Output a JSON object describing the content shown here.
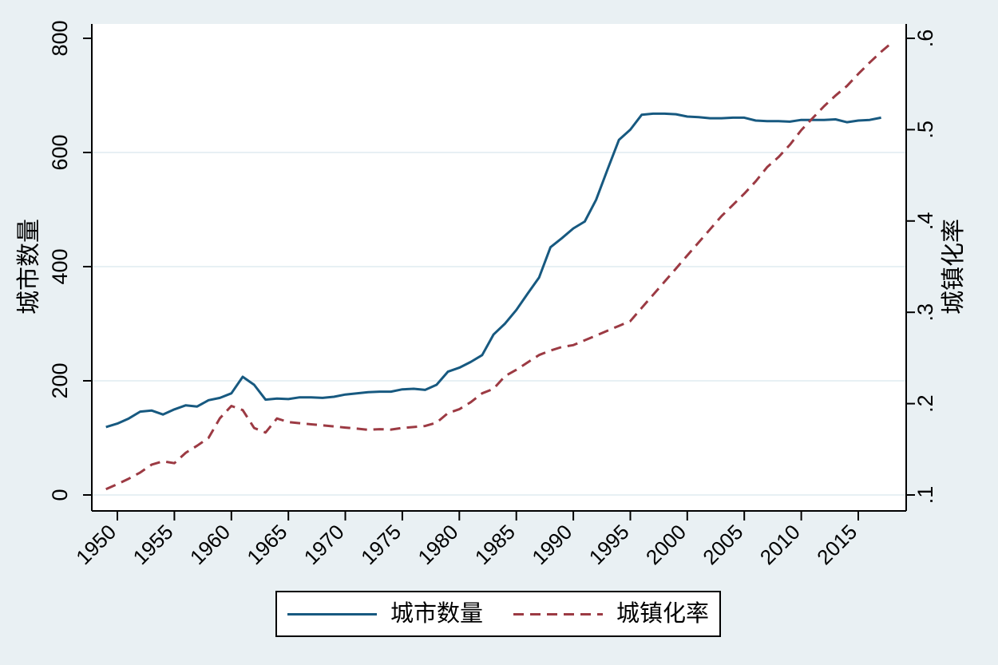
{
  "chart_data": {
    "type": "line",
    "title": "",
    "x_start_year": 1949,
    "x_ticks": [
      1950,
      1955,
      1960,
      1965,
      1970,
      1975,
      1980,
      1985,
      1990,
      1995,
      2000,
      2005,
      2010,
      2015
    ],
    "left_axis": {
      "title": "城市数量",
      "min": 0,
      "max": 800,
      "ticks": [
        0,
        200,
        400,
        600,
        800
      ],
      "tick_labels": [
        "0",
        "200",
        "400",
        "600",
        "800"
      ],
      "grid_ticks": [
        0,
        200,
        400,
        600
      ]
    },
    "right_axis": {
      "title": "城镇化率",
      "min": 0.1,
      "max": 0.6,
      "tick_values": [
        0.1,
        0.2,
        0.3,
        0.4,
        0.5,
        0.6
      ],
      "tick_labels": [
        ".1",
        ".2",
        ".3",
        ".4",
        ".5",
        ".6"
      ]
    },
    "series": [
      {
        "name": "城市数量",
        "axis": "left",
        "line": "solid",
        "color": "#175980",
        "start_year": 1949,
        "values": [
          119,
          125,
          134,
          146,
          148,
          141,
          150,
          157,
          155,
          166,
          170,
          178,
          207,
          193,
          167,
          169,
          168,
          171,
          171,
          170,
          172,
          176,
          178,
          180,
          181,
          181,
          185,
          186,
          184,
          193,
          216,
          223,
          233,
          245,
          281,
          300,
          324,
          353,
          381,
          434,
          450,
          467,
          479,
          517,
          570,
          622,
          640,
          666,
          668,
          668,
          667,
          663,
          662,
          660,
          660,
          661,
          661,
          656,
          655,
          655,
          654,
          657,
          657,
          657,
          658,
          653,
          656,
          657,
          661
        ]
      },
      {
        "name": "城镇化率",
        "axis": "right",
        "line": "dashed",
        "color": "#9c3a43",
        "start_year": 1949,
        "values": [
          0.1064,
          0.1118,
          0.1178,
          0.1246,
          0.1331,
          0.1369,
          0.1348,
          0.1462,
          0.1539,
          0.1625,
          0.1841,
          0.1975,
          0.1929,
          0.1733,
          0.1684,
          0.1837,
          0.1798,
          0.1786,
          0.1774,
          0.1762,
          0.175,
          0.1738,
          0.1726,
          0.1713,
          0.172,
          0.1716,
          0.1734,
          0.1744,
          0.1755,
          0.1792,
          0.1896,
          0.1939,
          0.2016,
          0.2113,
          0.2162,
          0.2301,
          0.2371,
          0.2452,
          0.2532,
          0.2581,
          0.2621,
          0.2641,
          0.2694,
          0.2746,
          0.2799,
          0.2851,
          0.2904,
          0.3048,
          0.3191,
          0.3335,
          0.3478,
          0.3622,
          0.3766,
          0.3909,
          0.4053,
          0.4176,
          0.4299,
          0.4434,
          0.4589,
          0.4699,
          0.4834,
          0.4995,
          0.5127,
          0.5257,
          0.5373,
          0.5477,
          0.561,
          0.5735,
          0.5852,
          0.5958
        ]
      }
    ],
    "legend_position": "bottom"
  },
  "legend": {
    "items": [
      {
        "label": "城市数量",
        "line": "solid",
        "color": "#175980"
      },
      {
        "label": "城镇化率",
        "line": "dashed",
        "color": "#9c3a43"
      }
    ]
  },
  "colors": {
    "background": "#e9f0f3",
    "plot_background": "#ffffff",
    "grid": "#dfebf1",
    "axis": "#000000",
    "cities_line": "#175980",
    "urbanization_line": "#9c3a43"
  }
}
